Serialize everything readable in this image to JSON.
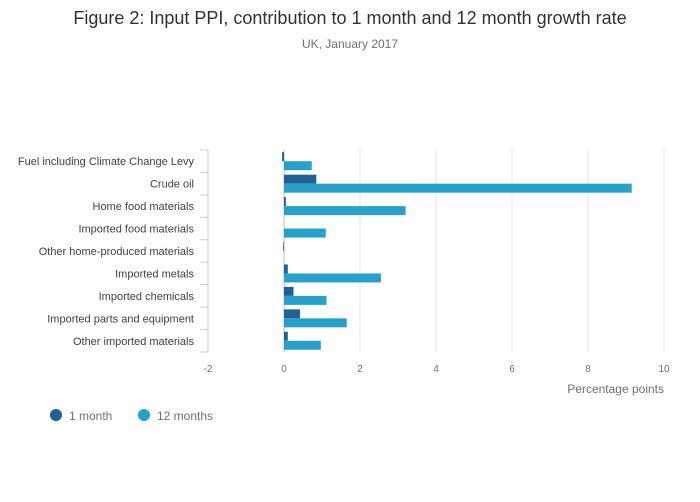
{
  "chart_data": {
    "type": "bar",
    "orientation": "horizontal",
    "title": "Figure 2: Input PPI, contribution to 1 month and 12 month growth rate",
    "subtitle": "UK, January 2017",
    "xlabel": "Percentage points",
    "ylabel": "",
    "xlim": [
      -2,
      10
    ],
    "xticks": [
      -2,
      0,
      2,
      4,
      6,
      8,
      10
    ],
    "grid": "vertical",
    "legend_position": "bottom-left",
    "categories": [
      "Fuel including Climate Change Levy",
      "Crude oil",
      "Home food materials",
      "Imported food materials",
      "Other home-produced materials",
      "Imported metals",
      "Imported chemicals",
      "Imported parts and equipment",
      "Other imported materials"
    ],
    "series": [
      {
        "name": "1 month",
        "color": "#206095",
        "values": [
          -0.05,
          0.85,
          0.05,
          0.0,
          -0.02,
          0.1,
          0.25,
          0.42,
          0.1
        ]
      },
      {
        "name": "12 months",
        "color": "#27a0cc",
        "values": [
          0.73,
          9.15,
          3.2,
          1.1,
          0.0,
          2.55,
          1.12,
          1.65,
          0.97
        ]
      }
    ]
  }
}
